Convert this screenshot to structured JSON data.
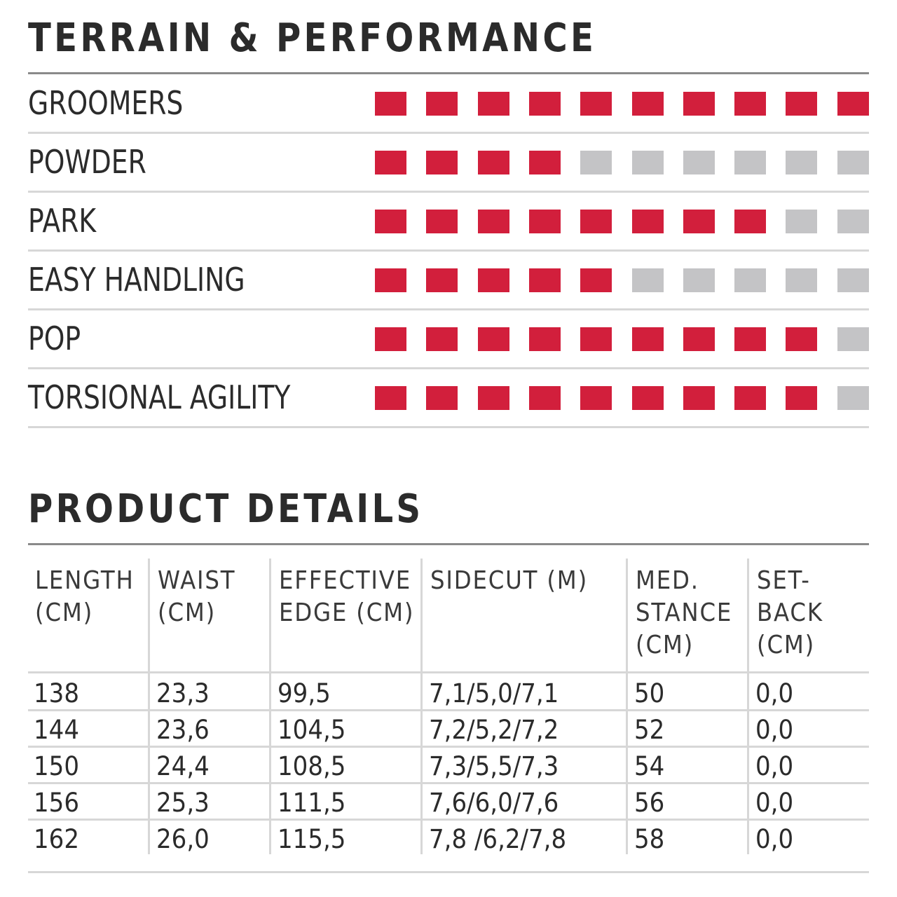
{
  "terrain": {
    "title": "TERRAIN & PERFORMANCE",
    "scale_max": 10,
    "colors": {
      "filled": "#d21f3c",
      "empty": "#c4c4c6"
    },
    "ratings": [
      {
        "label": "GROOMERS",
        "value": 10
      },
      {
        "label": "POWDER",
        "value": 4
      },
      {
        "label": "PARK",
        "value": 8
      },
      {
        "label": "EASY HANDLING",
        "value": 5
      },
      {
        "label": "POP",
        "value": 9
      },
      {
        "label": "TORSIONAL AGILITY",
        "value": 9
      }
    ]
  },
  "details": {
    "title": "PRODUCT DETAILS",
    "headers": [
      "LENGTH\n(CM)",
      "WAIST\n(CM)",
      "EFFECTIVE\nEDGE (CM)",
      "SIDECUT (M)",
      "MED.\nSTANCE\n(CM)",
      "SET-\nBACK\n(CM)"
    ],
    "rows": [
      [
        "138",
        "23,3",
        "99,5",
        "7,1/5,0/7,1",
        "50",
        "0,0"
      ],
      [
        "144",
        "23,6",
        "104,5",
        "7,2/5,2/7,2",
        "52",
        "0,0"
      ],
      [
        "150",
        "24,4",
        "108,5",
        "7,3/5,5/7,3",
        "54",
        "0,0"
      ],
      [
        "156",
        "25,3",
        "111,5",
        "7,6/6,0/7,6",
        "56",
        "0,0"
      ],
      [
        "162",
        "26,0",
        "115,5",
        "7,8 /6,2/7,8",
        "58",
        "0,0"
      ]
    ]
  }
}
